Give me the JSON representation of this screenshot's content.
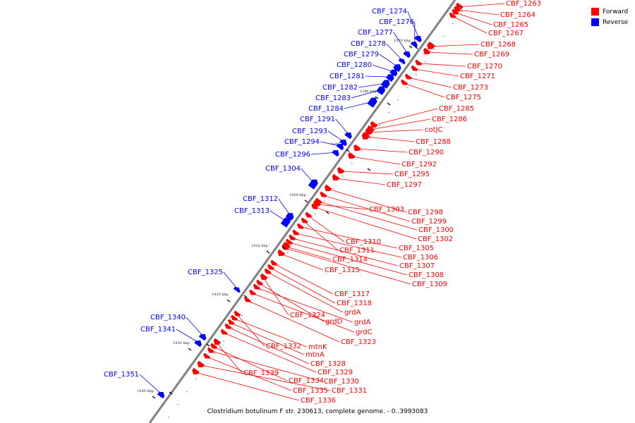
{
  "colors": {
    "forward": "#ff0000",
    "reverse": "#0000ff",
    "backbone": "#808080"
  },
  "legend": [
    {
      "label": "Forward",
      "color": "#ff0000"
    },
    {
      "label": "Reverse",
      "color": "#0000ff"
    }
  ],
  "caption": "Clostridium botulinum F str. 230613, complete genome. - 0..3993083",
  "ticks": [
    "1370 kbp",
    "1380 kbp",
    "1390 kbp",
    "1400 kbp",
    "1410 kbp",
    "1420 kbp",
    "1430 kbp",
    "1440 kbp"
  ],
  "reverse_genes": [
    "CBF_1274",
    "CBF_1276",
    "CBF_1277",
    "CBF_1278",
    "CBF_1279",
    "CBF_1280",
    "CBF_1281",
    "CBF_1282",
    "CBF_1283",
    "CBF_1284",
    "CBF_1291",
    "CBF_1293",
    "CBF_1294",
    "CBF_1296",
    "CBF_1304",
    "CBF_1312",
    "CBF_1313",
    "CBF_1325",
    "CBF_1340",
    "CBF_1341",
    "CBF_1351"
  ],
  "forward_genes": [
    "CBF_1263",
    "CBF_1264",
    "CBF_1265",
    "CBF_1267",
    "CBF_1268",
    "CBF_1269",
    "CBF_1270",
    "CBF_1271",
    "CBF_1273",
    "CBF_1275",
    "CBF_1285",
    "CBF_1286",
    "cotJC",
    "CBF_1288",
    "CBF_1290",
    "CBF_1292",
    "CBF_1295",
    "CBF_1297",
    "CBF_1303",
    "CBF_1298",
    "CBF_1299",
    "CBF_1300",
    "CBF_1302",
    "CBF_1310",
    "CBF_1311",
    "CBF_1305",
    "CBF_1306",
    "CBF_1314",
    "CBF_1307",
    "CBF_1315",
    "CBF_1308",
    "CBF_1309",
    "CBF_1317",
    "CBF_1318",
    "grdA",
    "CBF_1324",
    "grdD",
    "grdA",
    "grdC",
    "CBF_1323",
    "CBF_1332",
    "mtnK",
    "mtnA",
    "CBF_1328",
    "CBF_1329",
    "CBF_1339",
    "CBF_1334",
    "CBF_1330",
    "CBF_1335",
    "CBF_1331",
    "CBF_1336"
  ]
}
